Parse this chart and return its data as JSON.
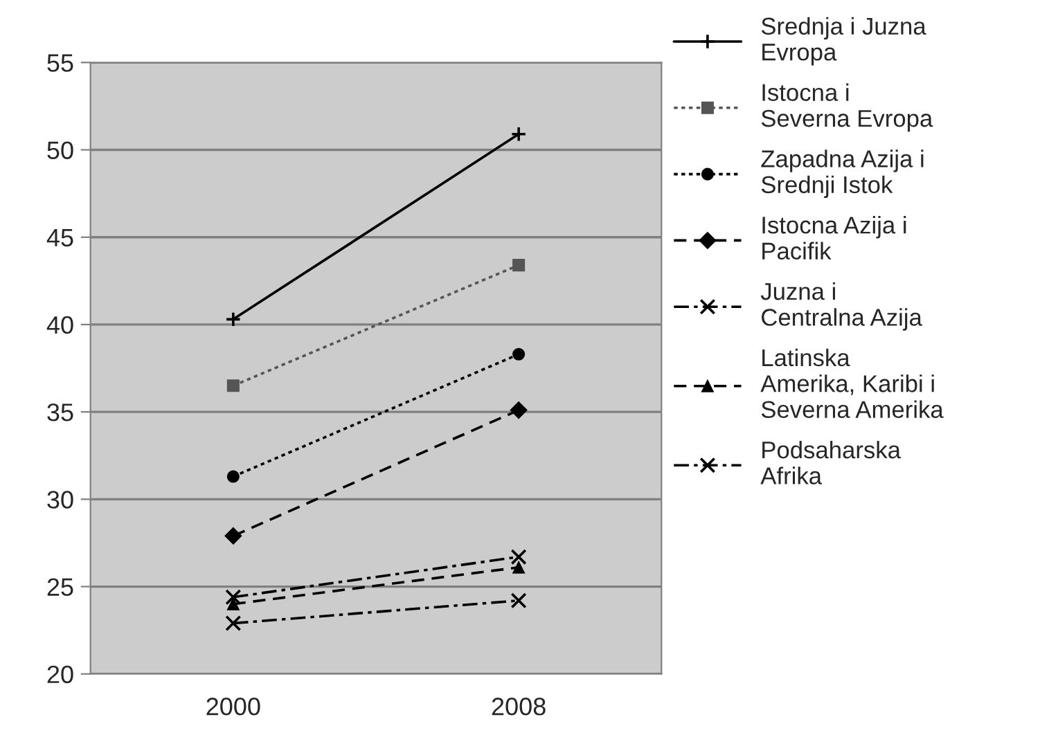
{
  "chart_data": {
    "type": "line",
    "categories": [
      "2000",
      "2008"
    ],
    "ylim": [
      20,
      55
    ],
    "yticks": [
      20,
      25,
      30,
      35,
      40,
      45,
      50,
      55
    ],
    "grid": "y",
    "legend": "right",
    "series": [
      {
        "name": "Srednja i Juzna\nEvropa",
        "color": "#000000",
        "values": [
          40.3,
          50.9
        ],
        "marker": "plus",
        "line_style": "solid"
      },
      {
        "name": "Istocna i\nSeverna Evropa",
        "color": "#555555",
        "values": [
          36.5,
          43.4
        ],
        "marker": "square",
        "line_style": "dotted"
      },
      {
        "name": "Zapadna Azija i\nSrednji Istok",
        "color": "#000000",
        "values": [
          31.3,
          38.3
        ],
        "marker": "circle",
        "line_style": "dotted"
      },
      {
        "name": "Istocna Azija i\nPacifik",
        "color": "#000000",
        "values": [
          27.9,
          35.1
        ],
        "marker": "diamond",
        "line_style": "dashed"
      },
      {
        "name": "Juzna i\nCentralna Azija",
        "color": "#000000",
        "values": [
          24.4,
          26.7
        ],
        "marker": "cross",
        "line_style": "dashdot"
      },
      {
        "name": "Latinska\nAmerika, Karibi i\nSeverna Amerika",
        "color": "#000000",
        "values": [
          24.0,
          26.1
        ],
        "marker": "triangle",
        "line_style": "dashed"
      },
      {
        "name": "Podsaharska\nAfrika",
        "color": "#000000",
        "values": [
          22.9,
          24.2
        ],
        "marker": "cross",
        "line_style": "dashdot"
      }
    ]
  }
}
